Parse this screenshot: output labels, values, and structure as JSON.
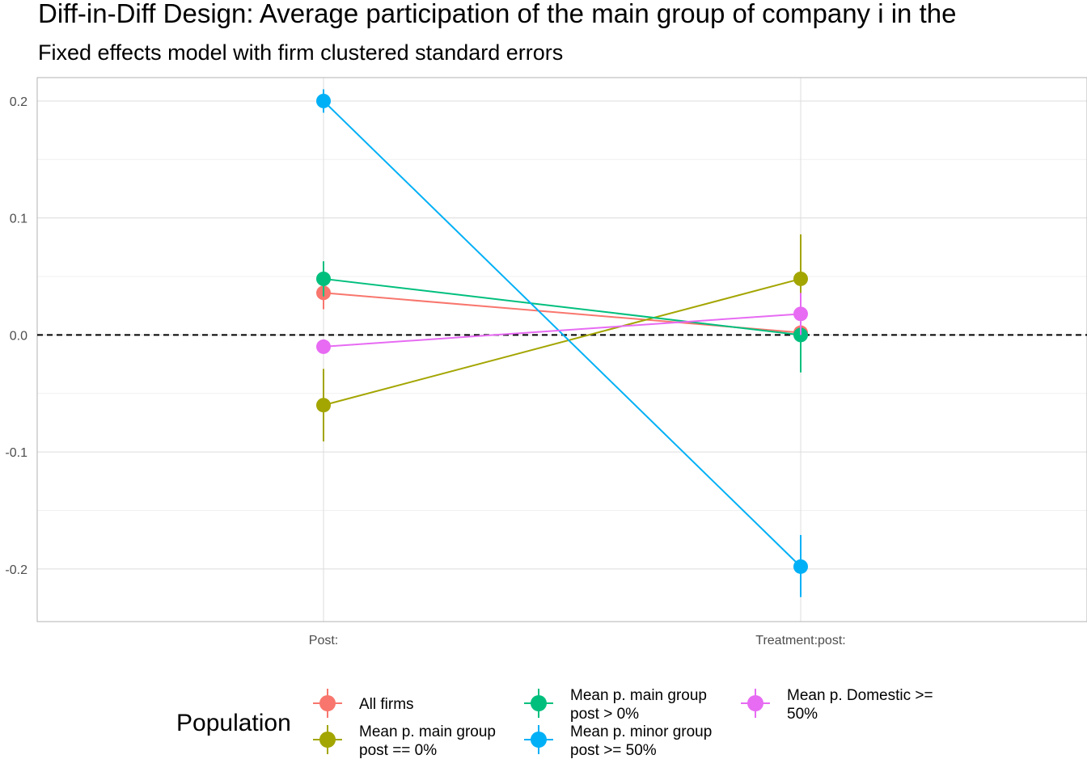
{
  "chart_data": {
    "type": "scatter",
    "title": "Diff-in-Diff Design: Average participation of the main group of company i in the",
    "subtitle": "Fixed effects model with firm clustered standard errors",
    "xlabel": "",
    "ylabel": "",
    "categories": [
      "Post:",
      "Treatment:post:"
    ],
    "ylim": [
      -0.245,
      0.22
    ],
    "yticks": [
      -0.2,
      -0.1,
      0.0,
      0.1,
      0.2
    ],
    "ytick_labels": [
      "-0.2",
      "-0.1",
      "0.0",
      "0.1",
      "0.2"
    ],
    "reference_line": {
      "y": 0,
      "style": "dashed"
    },
    "grid": true,
    "legend": {
      "title": "Population",
      "placement": "bottom"
    },
    "series": [
      {
        "name": "All firms",
        "color": "#F8766D",
        "values": [
          0.036,
          0.002
        ],
        "lower": [
          0.022,
          -0.006
        ],
        "upper": [
          0.05,
          0.01
        ]
      },
      {
        "name": "Mean p. main group post == 0%",
        "label_lines": [
          "Mean p. main group",
          "post == 0%"
        ],
        "color": "#A3A500",
        "values": [
          -0.06,
          0.048
        ],
        "lower": [
          -0.091,
          0.01
        ],
        "upper": [
          -0.029,
          0.086
        ]
      },
      {
        "name": "Mean p. main group post > 0%",
        "label_lines": [
          "Mean p. main group",
          "post > 0%"
        ],
        "color": "#00BF7D",
        "values": [
          0.048,
          0.0
        ],
        "lower": [
          0.033,
          -0.032
        ],
        "upper": [
          0.063,
          0.032
        ]
      },
      {
        "name": "Mean p. minor group post >= 50%",
        "label_lines": [
          "Mean p. minor group",
          "post >= 50%"
        ],
        "color": "#00B0F6",
        "values": [
          0.2,
          -0.198
        ],
        "lower": [
          0.19,
          -0.224
        ],
        "upper": [
          0.21,
          -0.171
        ]
      },
      {
        "name": "Mean p. Domestic >= 50%",
        "label_lines": [
          "Mean p. Domestic >=",
          "50%"
        ],
        "color": "#E76BF3",
        "values": [
          -0.01,
          0.018
        ],
        "lower": [
          -0.016,
          0.0
        ],
        "upper": [
          -0.004,
          0.036
        ]
      }
    ]
  }
}
